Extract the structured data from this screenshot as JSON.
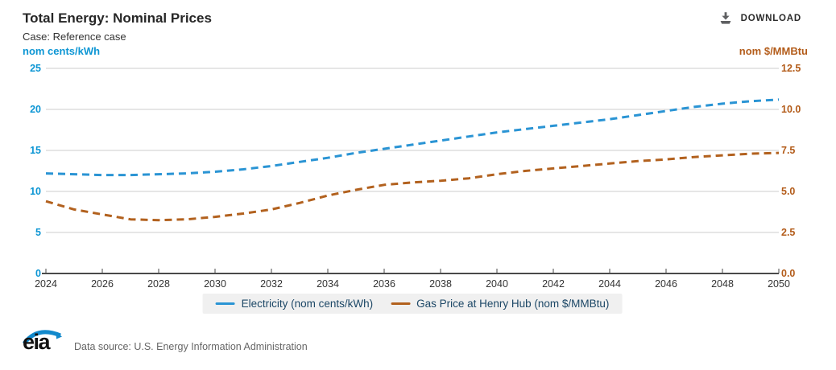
{
  "header": {
    "title": "Total Energy: Nominal Prices",
    "subtitle": "Case: Reference case",
    "download_label": "DOWNLOAD"
  },
  "axes": {
    "left_label": "nom cents/kWh",
    "right_label": "nom $/MMBtu"
  },
  "footer": {
    "logo_text": "eia",
    "source_text": "Data source: U.S. Energy Information Administration"
  },
  "colors": {
    "electricity_line": "#2a94d4",
    "gas_line": "#b2611e",
    "left_axis_text": "#0d96d4",
    "right_axis_text": "#b35c1a",
    "grid": "#cccccc",
    "axis_line": "#4a4a4a",
    "x_label_text": "#333333",
    "legend_text": "#1c4766",
    "legend_bg": "#f0f0f0",
    "download_icon": "#5f6062",
    "logo_blue": "#1289cc"
  },
  "chart_data": {
    "type": "line",
    "title": "Total Energy: Nominal Prices",
    "subtitle": "Case: Reference case",
    "grid": true,
    "legend_position": "bottom-center",
    "x": [
      2024,
      2025,
      2026,
      2027,
      2028,
      2029,
      2030,
      2031,
      2032,
      2033,
      2034,
      2035,
      2036,
      2037,
      2038,
      2039,
      2040,
      2041,
      2042,
      2043,
      2044,
      2045,
      2046,
      2047,
      2048,
      2049,
      2050
    ],
    "x_range": [
      2024,
      2050
    ],
    "x_tick_labels": [
      "2024",
      "2026",
      "2028",
      "2030",
      "2032",
      "2034",
      "2036",
      "2038",
      "2040",
      "2042",
      "2044",
      "2046",
      "2048",
      "2050"
    ],
    "x_tick_values": [
      2024,
      2026,
      2028,
      2030,
      2032,
      2034,
      2036,
      2038,
      2040,
      2042,
      2044,
      2046,
      2048,
      2050
    ],
    "left_axis": {
      "label": "nom cents/kWh",
      "range": [
        0,
        25
      ],
      "ticks": [
        {
          "v": 0,
          "label": "0"
        },
        {
          "v": 5,
          "label": "5"
        },
        {
          "v": 10,
          "label": "10"
        },
        {
          "v": 15,
          "label": "15"
        },
        {
          "v": 20,
          "label": "20"
        },
        {
          "v": 25,
          "label": "25"
        }
      ]
    },
    "right_axis": {
      "label": "nom $/MMBtu",
      "range": [
        0,
        12.5
      ],
      "ticks": [
        {
          "v": 0,
          "label": "0.0"
        },
        {
          "v": 2.5,
          "label": "2.5"
        },
        {
          "v": 5,
          "label": "5.0"
        },
        {
          "v": 7.5,
          "label": "7.5"
        },
        {
          "v": 10,
          "label": "10.0"
        },
        {
          "v": 12.5,
          "label": "12.5"
        }
      ]
    },
    "series": [
      {
        "name": "Electricity (nom cents/kWh)",
        "axis": "left",
        "color": "#2a94d4",
        "dashed": true,
        "values": [
          12.2,
          12.1,
          12.0,
          12.0,
          12.1,
          12.2,
          12.4,
          12.7,
          13.1,
          13.6,
          14.1,
          14.7,
          15.2,
          15.7,
          16.2,
          16.7,
          17.2,
          17.6,
          18.0,
          18.4,
          18.8,
          19.3,
          19.8,
          20.3,
          20.7,
          21.0,
          21.2
        ]
      },
      {
        "name": "Gas Price at Henry Hub (nom $/MMBtu)",
        "axis": "right",
        "color": "#b2611e",
        "dashed": true,
        "values": [
          4.4,
          3.9,
          3.6,
          3.3,
          3.25,
          3.3,
          3.45,
          3.65,
          3.9,
          4.3,
          4.75,
          5.1,
          5.4,
          5.55,
          5.65,
          5.8,
          6.05,
          6.25,
          6.4,
          6.55,
          6.7,
          6.85,
          6.95,
          7.1,
          7.2,
          7.3,
          7.35
        ]
      }
    ]
  }
}
